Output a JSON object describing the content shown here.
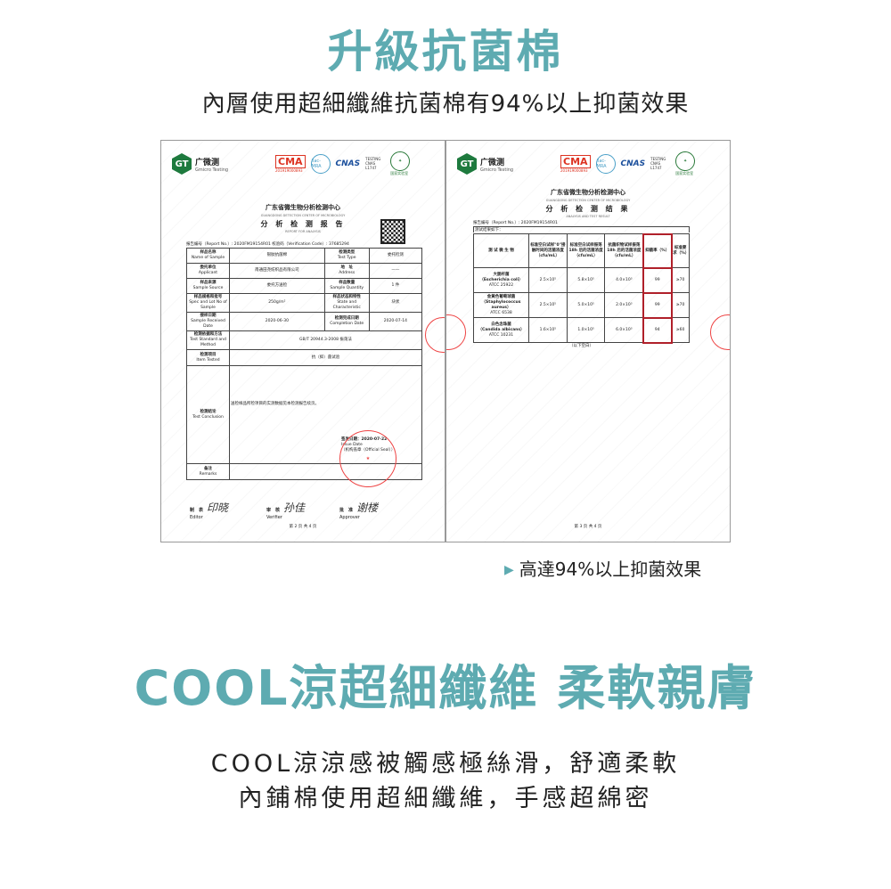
{
  "header": {
    "title": "升級抗菌棉",
    "subtitle": "內層使用超細纖維抗菌棉有94%以上抑菌效果"
  },
  "colors": {
    "accent": "#5eabb1",
    "highlight_box": "#b0202a",
    "seal": "#e44444"
  },
  "report_common": {
    "logo_glyph": "GT",
    "logo_name": "广微测",
    "logo_en": "Gmicro Testing",
    "ma": "CMA",
    "ma_no": "201919000893",
    "ilac": "ilac-MRA",
    "cnas": "CNAS",
    "cnas_text": "TESTING CNAS L1747",
    "lab_label": "国家实验室",
    "center": "广东省微生物分析检测中心",
    "center_en": "GUANGDONG DETECTION CENTER OF MICROBIOLOGY"
  },
  "report_left": {
    "title": "分 析 检 测 报 告",
    "title_en": "REPORT FOR ANALYSIS",
    "report_no": "报告编号（Report No.）: 2020FM19154R01 校验码（Verification Code）: 37685294",
    "rows": [
      {
        "l1": "样品名称",
        "l1e": "Name of Sample",
        "v1": "银肽抗菌棉",
        "l2": "检测类型",
        "l2e": "Test Type",
        "v2": "委托检测"
      },
      {
        "l1": "委托单位",
        "l1e": "Applicant",
        "v1": "南通田尧纺织品有限公司",
        "l2": "地　址",
        "l2e": "Address",
        "v2": "——"
      },
      {
        "l1": "样品来源",
        "l1e": "Sample Source",
        "v1": "委托方送检",
        "l2": "样品数量",
        "l2e": "Sample Quantity",
        "v2": "1 件"
      },
      {
        "l1": "样品规格和批号",
        "l1e": "Spec and Lot No of Sample",
        "v1": "250g/m²",
        "l2": "样品状态和特性",
        "l2e": "State and Characteristic",
        "v2": "块状"
      },
      {
        "l1": "接样日期",
        "l1e": "Sample Received Date",
        "v1": "2020-06-30",
        "l2": "检测完成日期",
        "l2e": "Completion Date",
        "v2": "2020-07-14"
      }
    ],
    "method_label": "检测依据和方法",
    "method_label_en": "Test Standard and Method",
    "method": "GB/T 20944.3-2008 振荡法",
    "item_label": "检测项目",
    "item_label_en": "Item Tested",
    "item": "抗（抑）菌试验",
    "conclusion_label": "检测结论",
    "conclusion_label_en": "Test Conclusion",
    "conclusion": "送检样品所检项目的实测数据见本检测报告续页。",
    "issue_date": "签发日期：2020-07-22",
    "issue_en": "Issue Date",
    "seal_note": "（机构盖章（Official Seal））",
    "seal_text": "广东省微生物分析检测中心 检验检测专用章",
    "remarks_label": "备注",
    "remarks_label_en": "Remarks",
    "editor": "制　表",
    "editor_en": "Editor",
    "verifier": "审　核",
    "verifier_en": "Verifier",
    "approver": "批　准",
    "approver_en": "Approver",
    "page": "第 2 页 共 4 页"
  },
  "report_right": {
    "title": "分 析 检 测 结 果",
    "title_en": "ANALYSIS AND TEST RESULT",
    "report_no": "报告编号（Report No.）: 2020FM19154R01",
    "results_label": "测试结果如下：",
    "headers": [
      "测 试 微 生 物",
      "标准空白试样\"0\"接触时间的活菌浓度（cfu/mL）",
      "标准空白试样振荡 18h 后的活菌浓度（cfu/mL）",
      "抗菌织物试样振荡 18h 后的活菌浓度（cfu/mL）",
      "抑菌率（%）",
      "标准要求（%）"
    ],
    "rows": [
      {
        "organism": "大肠杆菌",
        "latin": "（Escherichia coli）",
        "atcc": "ATCC 25922",
        "c0": "2.5×10⁵",
        "c1": "5.8×10⁵",
        "c2": "4.0×10³",
        "rate": "99",
        "req": "≥70"
      },
      {
        "organism": "金黄色葡萄球菌",
        "latin": "（Staphylococcus aureus）",
        "atcc": "ATCC 6538",
        "c0": "2.5×10⁵",
        "c1": "5.0×10⁵",
        "c2": "2.0×10³",
        "rate": "99",
        "req": "≥70"
      },
      {
        "organism": "白色念珠菌",
        "latin": "（Candida albicans）",
        "atcc": "ATCC 10231",
        "c0": "1.6×10⁵",
        "c1": "1.0×10⁵",
        "c2": "6.0×10³",
        "rate": "94",
        "req": "≥60"
      }
    ],
    "end_note": "（以下空白）",
    "page": "第 3 页 共 4 页"
  },
  "note": {
    "text": "高達94%以上抑菌效果"
  },
  "section2": {
    "title": "COOL涼超細纖維 柔軟親膚",
    "line1": "COOL涼涼感被觸感極絲滑，舒適柔軟",
    "line2": "內鋪棉使用超細纖維，手感超綿密"
  }
}
